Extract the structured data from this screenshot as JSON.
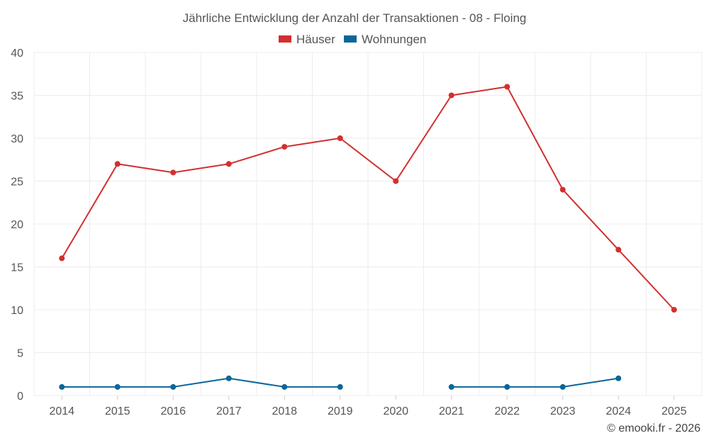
{
  "chart_data": {
    "type": "line",
    "title": "Jährliche Entwicklung der Anzahl der Transaktionen - 08 - Floing",
    "categories": [
      "2014",
      "2015",
      "2016",
      "2017",
      "2018",
      "2019",
      "2020",
      "2021",
      "2022",
      "2023",
      "2024",
      "2025"
    ],
    "series": [
      {
        "name": "Häuser",
        "color": "#d32f2f",
        "values": [
          16,
          27,
          26,
          27,
          29,
          30,
          25,
          35,
          36,
          24,
          17,
          10
        ]
      },
      {
        "name": "Wohnungen",
        "color": "#0b6699",
        "values": [
          1,
          1,
          1,
          2,
          1,
          1,
          null,
          1,
          1,
          1,
          2,
          null
        ]
      }
    ],
    "ylim": [
      0,
      40
    ],
    "yticks": [
      0,
      5,
      10,
      15,
      20,
      25,
      30,
      35,
      40
    ],
    "grid": true,
    "legend": "top-center",
    "xlabel": "",
    "ylabel": ""
  },
  "credit": "© emooki.fr - 2026"
}
